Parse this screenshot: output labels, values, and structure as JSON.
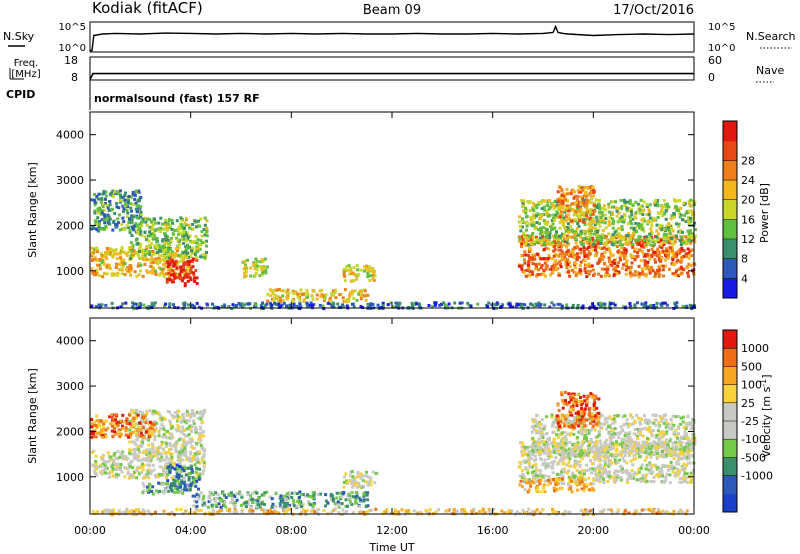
{
  "header": {
    "station": "Kodiak (fitACF)",
    "beam": "Beam 09",
    "date": "17/Oct/2016"
  },
  "colors": {
    "power": [
      "#1a1ae6",
      "#2c58b8",
      "#3b8f6a",
      "#5fbf3e",
      "#c9d62a",
      "#f2b81e",
      "#ee7e1a",
      "#e84815",
      "#e0180f"
    ],
    "velocity": [
      "#e0180f",
      "#ee6e18",
      "#f5a623",
      "#f7d23a",
      "#c8c8c4",
      "#c8c8c4",
      "#72c94a",
      "#3b8f6a",
      "#2c58b8",
      "#1a3fc8"
    ]
  },
  "chart_data": [
    {
      "type": "line",
      "panel": "nsky-nsearch",
      "left_label": "N.Sky",
      "right_label": "N.Search",
      "left_ticks": [
        "10^5",
        "10^0"
      ],
      "right_ticks": [
        "10^5",
        "10^0"
      ],
      "xlim": [
        0,
        24
      ],
      "series": [
        {
          "x": [
            0.0,
            0.08,
            0.15,
            0.5,
            1,
            2,
            3,
            4,
            5,
            6,
            7,
            8,
            9,
            10,
            11,
            12,
            13,
            14,
            15,
            16,
            17,
            18,
            18.4,
            18.5,
            18.6,
            18.8,
            19,
            20,
            21,
            22,
            23,
            24
          ],
          "y": [
            0.05,
            0.05,
            0.55,
            0.6,
            0.62,
            0.6,
            0.63,
            0.62,
            0.6,
            0.62,
            0.6,
            0.62,
            0.6,
            0.62,
            0.6,
            0.6,
            0.62,
            0.6,
            0.6,
            0.62,
            0.6,
            0.62,
            0.65,
            0.85,
            0.65,
            0.62,
            0.6,
            0.55,
            0.58,
            0.6,
            0.58,
            0.6
          ]
        }
      ]
    },
    {
      "type": "line",
      "panel": "freq-nave",
      "left_label": "Freq. [MHz]",
      "right_label": "Nave",
      "left_ticks": [
        "18",
        "8"
      ],
      "right_ticks": [
        "60",
        "0"
      ],
      "xlim": [
        0,
        24
      ],
      "ylim": [
        8,
        18
      ],
      "series": [
        {
          "x": [
            0,
            0.12,
            24
          ],
          "y": [
            8.2,
            10.8,
            10.8
          ]
        }
      ]
    },
    {
      "type": "heatmap",
      "panel": "power",
      "cpid_label": "CPID",
      "cpid_text": "normalsound (fast) 157 RF",
      "ylabel": "Slant Range [km]",
      "ylim": [
        180,
        4500
      ],
      "yticks": [
        1000,
        2000,
        3000,
        4000
      ],
      "xlim": [
        0,
        24
      ],
      "colorbar_label": "Power [dB]",
      "colorbar_ticks": [
        "4",
        "8",
        "12",
        "16",
        "20",
        "24",
        "28"
      ],
      "patches": [
        {
          "x": [
            0,
            4
          ],
          "y": [
            900,
            1550
          ],
          "v": 0.6
        },
        {
          "x": [
            1.5,
            4.6
          ],
          "y": [
            1300,
            2200
          ],
          "v": 0.4
        },
        {
          "x": [
            3,
            4.2
          ],
          "y": [
            700,
            1300
          ],
          "v": 0.95
        },
        {
          "x": [
            0,
            24
          ],
          "y": [
            200,
            330
          ],
          "v": 0.2
        },
        {
          "x": [
            7,
            11
          ],
          "y": [
            350,
            620
          ],
          "v": 0.6
        },
        {
          "x": [
            10,
            11.3
          ],
          "y": [
            800,
            1150
          ],
          "v": 0.55
        },
        {
          "x": [
            17,
            24
          ],
          "y": [
            900,
            1800
          ],
          "v": 0.75
        },
        {
          "x": [
            17,
            24
          ],
          "y": [
            1600,
            2600
          ],
          "v": 0.45
        },
        {
          "x": [
            18.5,
            20
          ],
          "y": [
            2100,
            2900
          ],
          "v": 0.7
        },
        {
          "x": [
            6,
            7
          ],
          "y": [
            900,
            1300
          ],
          "v": 0.5
        },
        {
          "x": [
            0,
            2
          ],
          "y": [
            1900,
            2800
          ],
          "v": 0.3
        }
      ]
    },
    {
      "type": "heatmap",
      "panel": "velocity",
      "ylabel": "Slant Range [km]",
      "ylim": [
        180,
        4500
      ],
      "yticks": [
        1000,
        2000,
        3000,
        4000
      ],
      "xlim": [
        0,
        24
      ],
      "xticks": [
        "00:00",
        "04:00",
        "08:00",
        "12:00",
        "16:00",
        "20:00",
        "00:00"
      ],
      "xlabel": "Time UT",
      "colorbar_label": "Velocity [m s^-1]",
      "colorbar_ticks": [
        "1000",
        "500",
        "100",
        "25",
        "-25",
        "-100",
        "-500",
        "-1000"
      ],
      "patches": [
        {
          "x": [
            0,
            4.5
          ],
          "y": [
            1000,
            1600
          ],
          "v": 0.5
        },
        {
          "x": [
            1.5,
            4.5
          ],
          "y": [
            1500,
            2500
          ],
          "v": 0.5
        },
        {
          "x": [
            3,
            4.3
          ],
          "y": [
            700,
            1300
          ],
          "v": 0.75
        },
        {
          "x": [
            2,
            4
          ],
          "y": [
            650,
            900
          ],
          "v": 0.7
        },
        {
          "x": [
            4,
            11
          ],
          "y": [
            350,
            700
          ],
          "v": 0.68
        },
        {
          "x": [
            0,
            24
          ],
          "y": [
            200,
            320
          ],
          "v": 0.35
        },
        {
          "x": [
            10,
            11.4
          ],
          "y": [
            800,
            1150
          ],
          "v": 0.5
        },
        {
          "x": [
            17,
            24
          ],
          "y": [
            900,
            1800
          ],
          "v": 0.5
        },
        {
          "x": [
            17.5,
            24
          ],
          "y": [
            1500,
            2400
          ],
          "v": 0.5
        },
        {
          "x": [
            18.5,
            20.2
          ],
          "y": [
            2100,
            2900
          ],
          "v": 0.15
        },
        {
          "x": [
            17,
            20
          ],
          "y": [
            700,
            1000
          ],
          "v": 0.3
        },
        {
          "x": [
            0,
            2.5
          ],
          "y": [
            1900,
            2400
          ],
          "v": 0.2
        }
      ]
    }
  ]
}
